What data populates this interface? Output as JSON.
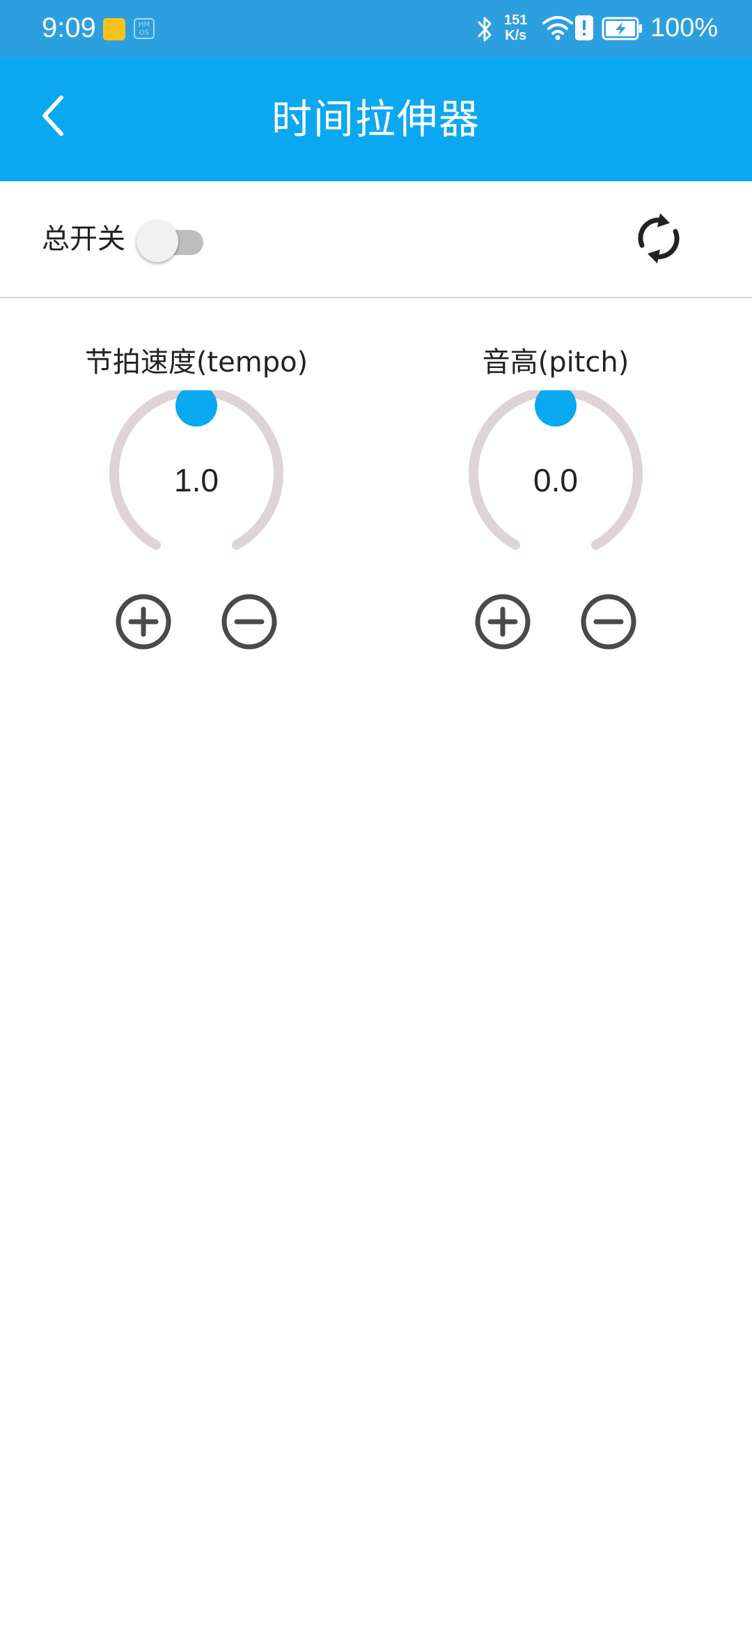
{
  "status_bar": {
    "time": "9:09",
    "hm_badge": "HM OS",
    "net_speed_value": "151",
    "net_speed_unit": "K/s",
    "battery_percent": "100%"
  },
  "app_bar": {
    "title": "时间拉伸器",
    "back_icon": "chevron-left-icon"
  },
  "controls": {
    "master_switch_label": "总开关",
    "master_switch_on": false,
    "refresh_icon": "refresh-icon"
  },
  "dials": {
    "tempo": {
      "label": "节拍速度(tempo)",
      "value": "1.0",
      "plus_icon": "plus-circle-icon",
      "minus_icon": "minus-circle-icon"
    },
    "pitch": {
      "label": "音高(pitch)",
      "value": "0.0",
      "plus_icon": "plus-circle-icon",
      "minus_icon": "minus-circle-icon"
    }
  },
  "colors": {
    "status_bar": "#2c9fe0",
    "app_bar": "#0ba8f2",
    "accent": "#0ba8f2",
    "dial_track": "#e0d3d5",
    "icon": "#4a4a4a"
  }
}
